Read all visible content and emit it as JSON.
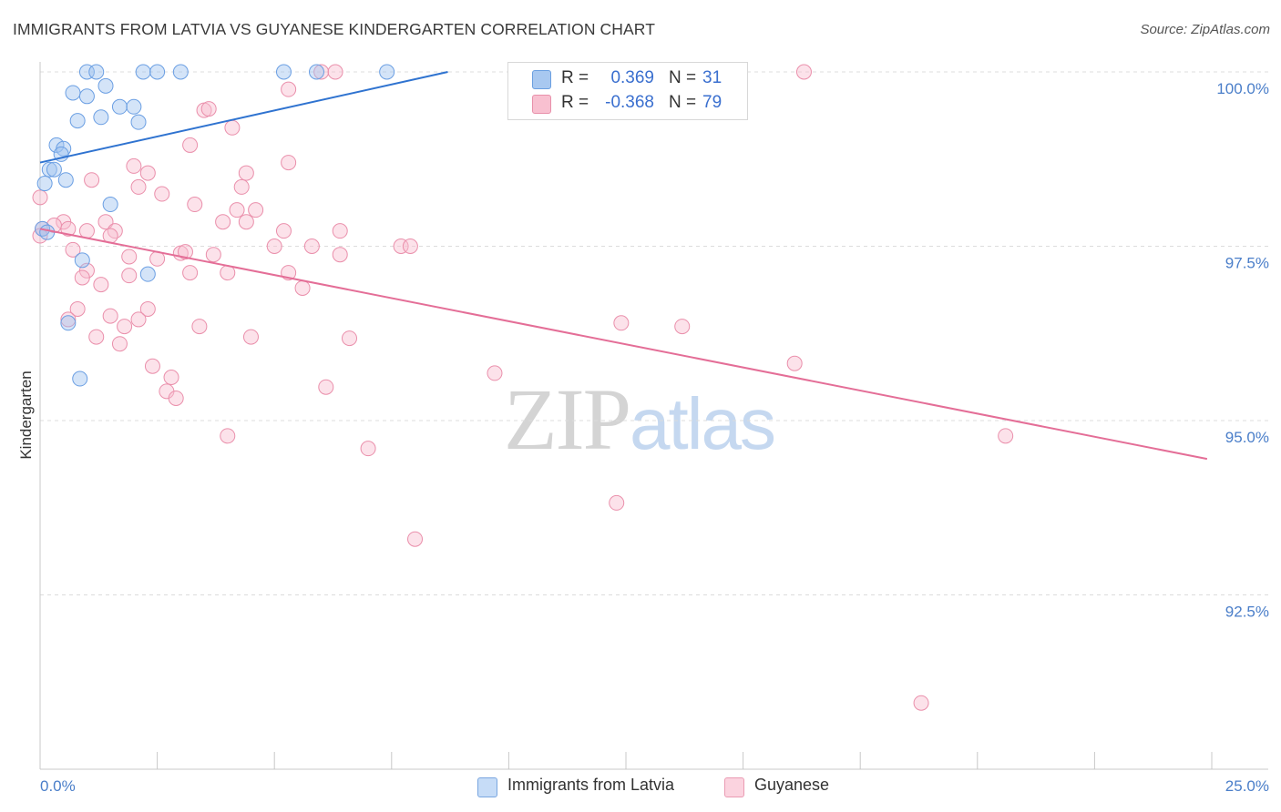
{
  "title": "IMMIGRANTS FROM LATVIA VS GUYANESE KINDERGARTEN CORRELATION CHART",
  "source": "Source: ZipAtlas.com",
  "watermark": {
    "zip": "ZIP",
    "atlas": "atlas"
  },
  "legend": {
    "rows": [
      {
        "r_label": "R =",
        "r_value": "0.369",
        "n_label": "N =",
        "n_value": "31",
        "color": "#a8c8f0",
        "border": "#6a9fe0"
      },
      {
        "r_label": "R =",
        "r_value": "-0.368",
        "n_label": "N =",
        "n_value": "79",
        "color": "#f8c0d0",
        "border": "#e890aa"
      }
    ]
  },
  "bottom_legend": [
    {
      "label": "Immigrants from Latvia",
      "color": "#c6dcf7",
      "border": "#7aa6e0"
    },
    {
      "label": "Guyanese",
      "color": "#fbd3df",
      "border": "#ea9bb3"
    }
  ],
  "chart_data": {
    "type": "scatter",
    "xlabel": "",
    "ylabel": "Kindergarten",
    "xlim": [
      0,
      25
    ],
    "ylim": [
      90.0,
      100.3
    ],
    "x_ticks": [
      {
        "value": 0,
        "label": "0.0%"
      },
      {
        "value": 25,
        "label": "25.0%"
      }
    ],
    "y_ticks": [
      {
        "value": 100.0,
        "label": "100.0%"
      },
      {
        "value": 97.5,
        "label": "97.5%"
      },
      {
        "value": 95.0,
        "label": "95.0%"
      },
      {
        "value": 92.5,
        "label": "92.5%"
      }
    ],
    "grid": true,
    "series": [
      {
        "name": "Immigrants from Latvia",
        "color": "#6b9fe3",
        "fill": "rgba(160,196,240,0.45)",
        "line_color": "#2f73d0",
        "trend": {
          "x": [
            0.0,
            8.7
          ],
          "y": [
            98.7,
            100.0
          ]
        },
        "points": [
          [
            1.0,
            100.0
          ],
          [
            1.2,
            100.0
          ],
          [
            2.2,
            100.0
          ],
          [
            2.5,
            100.0
          ],
          [
            3.0,
            100.0
          ],
          [
            5.2,
            100.0
          ],
          [
            5.9,
            100.0
          ],
          [
            7.4,
            100.0
          ],
          [
            0.7,
            99.7
          ],
          [
            1.0,
            99.65
          ],
          [
            1.4,
            99.8
          ],
          [
            1.7,
            99.5
          ],
          [
            2.0,
            99.5
          ],
          [
            0.8,
            99.3
          ],
          [
            1.3,
            99.35
          ],
          [
            2.1,
            99.28
          ],
          [
            0.35,
            98.95
          ],
          [
            0.5,
            98.9
          ],
          [
            0.45,
            98.82
          ],
          [
            0.2,
            98.6
          ],
          [
            0.3,
            98.6
          ],
          [
            0.55,
            98.45
          ],
          [
            0.1,
            98.4
          ],
          [
            1.5,
            98.1
          ],
          [
            0.05,
            97.75
          ],
          [
            0.15,
            97.7
          ],
          [
            0.9,
            97.3
          ],
          [
            2.3,
            97.1
          ],
          [
            0.6,
            96.4
          ],
          [
            0.85,
            95.6
          ]
        ]
      },
      {
        "name": "Guyanese",
        "color": "#ea8fab",
        "fill": "rgba(248,190,208,0.45)",
        "line_color": "#e46e97",
        "trend": {
          "x": [
            0.0,
            24.9
          ],
          "y": [
            97.75,
            94.45
          ]
        },
        "points": [
          [
            6.0,
            100.0
          ],
          [
            6.3,
            100.0
          ],
          [
            16.3,
            100.0
          ],
          [
            5.3,
            99.75
          ],
          [
            3.5,
            99.45
          ],
          [
            3.6,
            99.47
          ],
          [
            4.1,
            99.2
          ],
          [
            3.2,
            98.95
          ],
          [
            2.0,
            98.65
          ],
          [
            5.3,
            98.7
          ],
          [
            2.3,
            98.55
          ],
          [
            4.4,
            98.55
          ],
          [
            1.1,
            98.45
          ],
          [
            2.1,
            98.35
          ],
          [
            4.3,
            98.35
          ],
          [
            2.6,
            98.25
          ],
          [
            3.3,
            98.1
          ],
          [
            4.2,
            98.02
          ],
          [
            4.6,
            98.02
          ],
          [
            0.0,
            98.2
          ],
          [
            3.9,
            97.85
          ],
          [
            4.4,
            97.85
          ],
          [
            0.5,
            97.85
          ],
          [
            1.4,
            97.85
          ],
          [
            0.3,
            97.8
          ],
          [
            0.6,
            97.75
          ],
          [
            0.05,
            97.75
          ],
          [
            1.0,
            97.72
          ],
          [
            1.6,
            97.72
          ],
          [
            5.2,
            97.72
          ],
          [
            6.4,
            97.72
          ],
          [
            1.5,
            97.65
          ],
          [
            0.0,
            97.65
          ],
          [
            5.0,
            97.5
          ],
          [
            5.8,
            97.5
          ],
          [
            7.7,
            97.5
          ],
          [
            7.9,
            97.5
          ],
          [
            0.7,
            97.45
          ],
          [
            3.0,
            97.4
          ],
          [
            3.1,
            97.42
          ],
          [
            3.7,
            97.38
          ],
          [
            6.4,
            97.38
          ],
          [
            1.9,
            97.35
          ],
          [
            2.5,
            97.32
          ],
          [
            1.0,
            97.15
          ],
          [
            3.2,
            97.12
          ],
          [
            4.0,
            97.12
          ],
          [
            5.3,
            97.12
          ],
          [
            1.9,
            97.08
          ],
          [
            0.9,
            97.05
          ],
          [
            5.6,
            96.9
          ],
          [
            1.3,
            96.95
          ],
          [
            2.3,
            96.6
          ],
          [
            0.8,
            96.6
          ],
          [
            1.5,
            96.5
          ],
          [
            2.1,
            96.45
          ],
          [
            0.6,
            96.45
          ],
          [
            1.8,
            96.35
          ],
          [
            3.4,
            96.35
          ],
          [
            12.4,
            96.4
          ],
          [
            13.7,
            96.35
          ],
          [
            1.2,
            96.2
          ],
          [
            4.5,
            96.2
          ],
          [
            6.6,
            96.18
          ],
          [
            1.7,
            96.1
          ],
          [
            2.4,
            95.78
          ],
          [
            2.8,
            95.62
          ],
          [
            9.7,
            95.68
          ],
          [
            6.1,
            95.48
          ],
          [
            2.7,
            95.42
          ],
          [
            2.9,
            95.32
          ],
          [
            16.1,
            95.82
          ],
          [
            4.0,
            94.78
          ],
          [
            20.6,
            94.78
          ],
          [
            7.0,
            94.6
          ],
          [
            12.3,
            93.82
          ],
          [
            8.0,
            93.3
          ],
          [
            18.8,
            90.95
          ]
        ]
      }
    ]
  }
}
